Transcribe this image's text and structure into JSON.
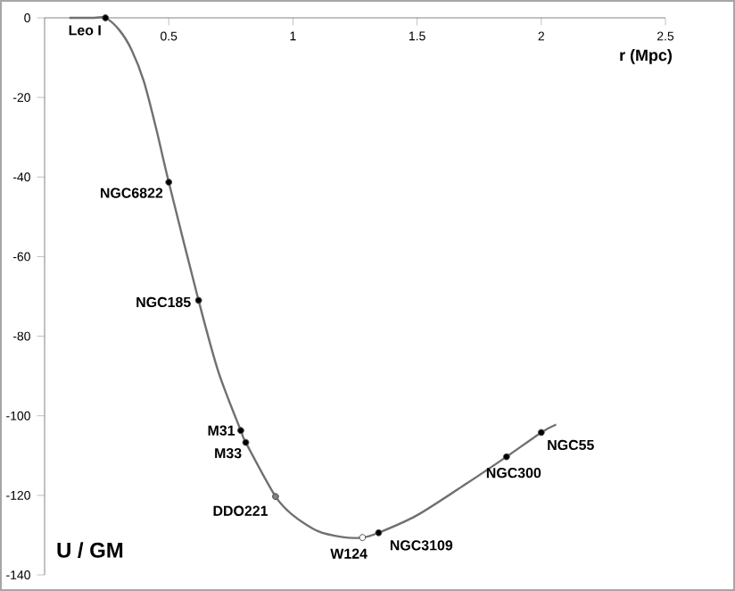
{
  "chart_data": {
    "type": "line",
    "xlabel": "r (Mpc)",
    "ylabel": "U / GM",
    "xlim": [
      0,
      2.5
    ],
    "ylim": [
      -140,
      0
    ],
    "xticks": [
      0.5,
      1,
      1.5,
      2,
      2.5
    ],
    "yticks": [
      -140,
      -120,
      -100,
      -80,
      -60,
      -40,
      -20,
      0
    ],
    "grid": false,
    "line_style": "solid",
    "series": [
      {
        "color": "#707070",
        "x": [
          0.1,
          0.2,
          0.245,
          0.3,
          0.35,
          0.4,
          0.45,
          0.5,
          0.62,
          0.7,
          0.79,
          0.81,
          0.93,
          1.0,
          1.1,
          1.2,
          1.28,
          1.345,
          1.5,
          1.7,
          1.86,
          2.0,
          2.06
        ],
        "values": [
          0,
          0,
          0,
          -3,
          -8,
          -16,
          -28,
          -41.3,
          -71,
          -89,
          -103.7,
          -106.7,
          -120.3,
          -125,
          -129,
          -130.5,
          -130.6,
          -129.4,
          -125,
          -117,
          -110.3,
          -104.2,
          -102.2
        ]
      },
      {
        "type": "scatter",
        "marker": "circle",
        "x": [
          0.245,
          0.5,
          0.62,
          0.79,
          0.81,
          0.93,
          1.28,
          1.345,
          1.86,
          2.0
        ],
        "values": [
          0,
          -41.3,
          -71,
          -103.7,
          -106.7,
          -120.3,
          -130.6,
          -129.4,
          -110.3,
          -104.2
        ],
        "colors": [
          "#000000",
          "#000000",
          "#000000",
          "#000000",
          "#000000",
          "#808080",
          "#ffffff",
          "#000000",
          "#000000",
          "#000000"
        ]
      }
    ],
    "annotations": [
      {
        "text": "Leo I",
        "x": 0.245,
        "y": 0
      },
      {
        "text": "NGC6822",
        "x": 0.5,
        "y": -41.3
      },
      {
        "text": "NGC185",
        "x": 0.62,
        "y": -71
      },
      {
        "text": "M31",
        "x": 0.79,
        "y": -103.7
      },
      {
        "text": "M33",
        "x": 0.81,
        "y": -106.7
      },
      {
        "text": "DDO221",
        "x": 0.93,
        "y": -120.3
      },
      {
        "text": "W124",
        "x": 1.28,
        "y": -130.6
      },
      {
        "text": "NGC3109",
        "x": 1.345,
        "y": -129.4
      },
      {
        "text": "NGC300",
        "x": 1.86,
        "y": -110.3
      },
      {
        "text": "NGC55",
        "x": 2.0,
        "y": -104.2
      }
    ]
  }
}
